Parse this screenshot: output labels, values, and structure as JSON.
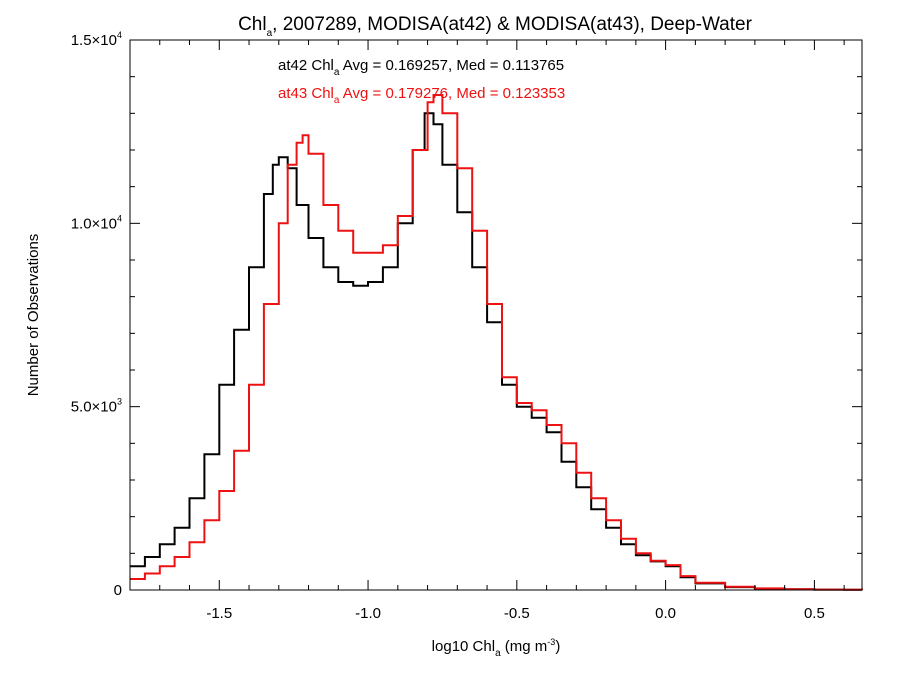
{
  "chart_data": {
    "type": "line",
    "step": true,
    "title": {
      "pre": "Chl",
      "sub": "a",
      "post": ", 2007289, MODISA(at42) & MODISA(at43), Deep-Water"
    },
    "xlabel": {
      "pre": "log10 Chl",
      "sub": "a",
      "mid": " (mg m",
      "sup": "-3",
      "post": ")"
    },
    "ylabel": "Number of Observations",
    "xlim": [
      -1.8,
      0.66
    ],
    "ylim": [
      0,
      15000
    ],
    "grid": false,
    "xticks": [
      {
        "value": -1.5,
        "label": "-1.5"
      },
      {
        "value": -1.0,
        "label": "-1.0"
      },
      {
        "value": -0.5,
        "label": "-0.5"
      },
      {
        "value": 0.0,
        "label": "0.0"
      },
      {
        "value": 0.5,
        "label": "0.5"
      }
    ],
    "yticks": [
      {
        "value": 0,
        "mant": "0",
        "exp": ""
      },
      {
        "value": 5000,
        "mant": "5.0×10",
        "exp": "3"
      },
      {
        "value": 10000,
        "mant": "1.0×10",
        "exp": "4"
      },
      {
        "value": 15000,
        "mant": "1.5×10",
        "exp": "4"
      }
    ],
    "series": [
      {
        "name": "at42",
        "color": "#000000",
        "stat": {
          "pre": "at42 Chl",
          "sub": "a",
          "post": " Avg = 0.169257, Med = 0.113765"
        },
        "points": [
          [
            -1.8,
            650
          ],
          [
            -1.75,
            900
          ],
          [
            -1.7,
            1250
          ],
          [
            -1.65,
            1700
          ],
          [
            -1.6,
            2500
          ],
          [
            -1.55,
            3700
          ],
          [
            -1.5,
            5600
          ],
          [
            -1.45,
            7100
          ],
          [
            -1.4,
            8800
          ],
          [
            -1.35,
            10800
          ],
          [
            -1.32,
            11600
          ],
          [
            -1.3,
            11800
          ],
          [
            -1.27,
            11500
          ],
          [
            -1.24,
            10500
          ],
          [
            -1.2,
            9600
          ],
          [
            -1.15,
            8800
          ],
          [
            -1.1,
            8400
          ],
          [
            -1.05,
            8300
          ],
          [
            -1.0,
            8400
          ],
          [
            -0.95,
            8800
          ],
          [
            -0.9,
            10000
          ],
          [
            -0.85,
            12000
          ],
          [
            -0.81,
            13000
          ],
          [
            -0.78,
            12700
          ],
          [
            -0.75,
            11600
          ],
          [
            -0.7,
            10300
          ],
          [
            -0.65,
            8800
          ],
          [
            -0.6,
            7300
          ],
          [
            -0.55,
            5600
          ],
          [
            -0.5,
            5000
          ],
          [
            -0.45,
            4700
          ],
          [
            -0.4,
            4300
          ],
          [
            -0.35,
            3500
          ],
          [
            -0.3,
            2800
          ],
          [
            -0.25,
            2200
          ],
          [
            -0.2,
            1700
          ],
          [
            -0.15,
            1250
          ],
          [
            -0.1,
            950
          ],
          [
            -0.05,
            780
          ],
          [
            0.0,
            650
          ],
          [
            0.05,
            350
          ],
          [
            0.1,
            180
          ],
          [
            0.2,
            80
          ],
          [
            0.3,
            40
          ],
          [
            0.4,
            20
          ],
          [
            0.5,
            10
          ],
          [
            0.6,
            5
          ],
          [
            0.66,
            3
          ]
        ]
      },
      {
        "name": "at43",
        "color": "#ee1111",
        "stat": {
          "pre": "at43 Chl",
          "sub": "a",
          "post": " Avg = 0.179276, Med = 0.123353"
        },
        "points": [
          [
            -1.8,
            300
          ],
          [
            -1.75,
            450
          ],
          [
            -1.7,
            650
          ],
          [
            -1.65,
            900
          ],
          [
            -1.6,
            1300
          ],
          [
            -1.55,
            1900
          ],
          [
            -1.5,
            2700
          ],
          [
            -1.45,
            3800
          ],
          [
            -1.4,
            5600
          ],
          [
            -1.35,
            7800
          ],
          [
            -1.3,
            10000
          ],
          [
            -1.27,
            11600
          ],
          [
            -1.24,
            12200
          ],
          [
            -1.22,
            12400
          ],
          [
            -1.2,
            11900
          ],
          [
            -1.15,
            10500
          ],
          [
            -1.1,
            9800
          ],
          [
            -1.05,
            9200
          ],
          [
            -1.0,
            9200
          ],
          [
            -0.95,
            9400
          ],
          [
            -0.9,
            10200
          ],
          [
            -0.85,
            12000
          ],
          [
            -0.8,
            13300
          ],
          [
            -0.78,
            13500
          ],
          [
            -0.75,
            13000
          ],
          [
            -0.7,
            11500
          ],
          [
            -0.65,
            9800
          ],
          [
            -0.6,
            7800
          ],
          [
            -0.55,
            5800
          ],
          [
            -0.5,
            5100
          ],
          [
            -0.45,
            4900
          ],
          [
            -0.4,
            4500
          ],
          [
            -0.35,
            4000
          ],
          [
            -0.3,
            3200
          ],
          [
            -0.25,
            2500
          ],
          [
            -0.2,
            1900
          ],
          [
            -0.15,
            1400
          ],
          [
            -0.1,
            1000
          ],
          [
            -0.05,
            800
          ],
          [
            0.0,
            680
          ],
          [
            0.05,
            380
          ],
          [
            0.1,
            200
          ],
          [
            0.2,
            90
          ],
          [
            0.3,
            45
          ],
          [
            0.4,
            22
          ],
          [
            0.5,
            12
          ],
          [
            0.6,
            6
          ],
          [
            0.66,
            4
          ]
        ]
      }
    ]
  }
}
